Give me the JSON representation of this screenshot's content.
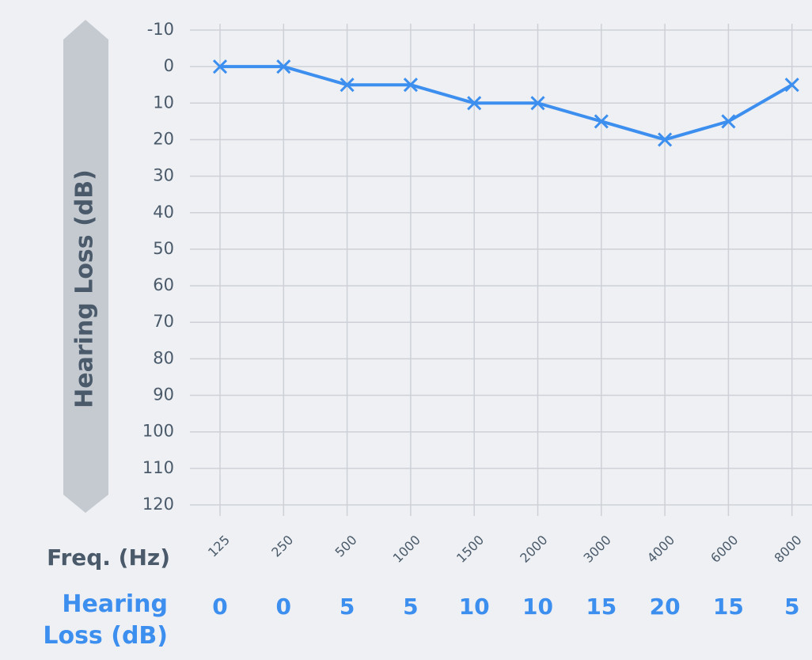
{
  "chart_data": {
    "type": "line",
    "y_label": "Hearing Loss (dB)",
    "x_label": "Freq. (Hz)",
    "row_label": "Hearing Loss (dB)",
    "categories": [
      "125",
      "250",
      "500",
      "1000",
      "1500",
      "2000",
      "3000",
      "4000",
      "6000",
      "8000"
    ],
    "series": [
      {
        "name": "Hearing Loss (dB)",
        "color": "#3d8fef",
        "values": [
          0,
          0,
          5,
          5,
          10,
          10,
          15,
          20,
          15,
          5
        ]
      }
    ],
    "ylim": [
      -10,
      120
    ],
    "yticks": [
      -10,
      0,
      10,
      20,
      30,
      40,
      50,
      60,
      70,
      80,
      90,
      100,
      110,
      120
    ],
    "y_inverted": true,
    "grid": true
  }
}
